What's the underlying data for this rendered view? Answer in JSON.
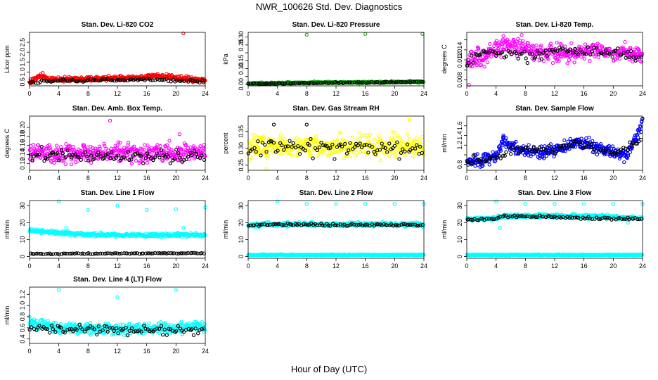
{
  "figure": {
    "title": "NWR_100626  Std. Dev. Diagnostics",
    "xlabel": "Hour of Day (UTC)"
  },
  "chart_data": [
    {
      "type": "scatter",
      "title": "Stan. Dev. Li-820 CO2",
      "ylabel": "Licor ppm",
      "xlim": [
        0,
        24
      ],
      "xticks": [
        0,
        4,
        8,
        12,
        16,
        20,
        24
      ],
      "ylim": [
        0.3,
        3.0
      ],
      "yticks": [
        0.5,
        1.0,
        1.5,
        2.0,
        2.5
      ],
      "ytick_labels": [
        "0.5",
        "1.0",
        "1.5",
        "2.0",
        "2.5"
      ],
      "series": [
        {
          "color": "#ff0000",
          "base": 0.6,
          "spread": 0.08,
          "profile": [
            [
              0,
              0.5
            ],
            [
              1.5,
              0.8
            ],
            [
              3,
              0.62
            ],
            [
              8,
              0.65
            ],
            [
              12,
              0.68
            ],
            [
              15,
              0.7
            ],
            [
              17,
              0.82
            ],
            [
              20,
              0.72
            ],
            [
              24,
              0.55
            ]
          ],
          "outliers": [
            [
              21,
              2.95
            ],
            [
              1.8,
              0.95
            ]
          ]
        },
        {
          "color": "#000000",
          "base": 0.55,
          "spread": 0.05,
          "profile": [
            [
              0,
              0.5
            ],
            [
              4,
              0.56
            ],
            [
              12,
              0.6
            ],
            [
              16,
              0.62
            ],
            [
              20,
              0.58
            ],
            [
              24,
              0.52
            ]
          ],
          "outliers": []
        }
      ]
    },
    {
      "type": "scatter",
      "title": "Stan. Dev. Li-820 Pressure",
      "ylabel": "kPa",
      "xlim": [
        0,
        24
      ],
      "xticks": [
        0,
        4,
        8,
        12,
        16,
        20,
        24
      ],
      "ylim": [
        -0.01,
        0.33
      ],
      "yticks": [
        0.0,
        0.05,
        0.1,
        0.15,
        0.2,
        0.25,
        0.3
      ],
      "ytick_labels": [
        "0.00",
        "",
        "0.10",
        "0.15",
        "",
        "0.25",
        "0.30"
      ],
      "series": [
        {
          "color": "#00b000",
          "base": 0.01,
          "spread": 0.004,
          "profile": [
            [
              0,
              0.004
            ],
            [
              8,
              0.01
            ],
            [
              16,
              0.012
            ],
            [
              24,
              0.016
            ]
          ],
          "outliers": [
            [
              8,
              0.315
            ],
            [
              16,
              0.32
            ],
            [
              23.8,
              0.32
            ]
          ]
        },
        {
          "color": "#000000",
          "base": 0.01,
          "spread": 0.003,
          "profile": [
            [
              0,
              0.004
            ],
            [
              12,
              0.01
            ],
            [
              24,
              0.014
            ]
          ],
          "outliers": []
        }
      ]
    },
    {
      "type": "scatter",
      "title": "Stan. Dev. Li-820 Temp.",
      "ylabel": "degrees C",
      "xlim": [
        0,
        24
      ],
      "xticks": [
        0,
        4,
        8,
        12,
        16,
        20,
        24
      ],
      "ylim": [
        0.0068,
        0.0175
      ],
      "yticks": [
        0.008,
        0.01,
        0.012,
        0.014,
        0.016
      ],
      "ytick_labels": [
        "0.008",
        "",
        "0.012",
        "0.014",
        ""
      ],
      "series": [
        {
          "color": "#ff00ff",
          "base": 0.013,
          "spread": 0.0012,
          "profile": [
            [
              0,
              0.0115
            ],
            [
              2,
              0.0125
            ],
            [
              4,
              0.0145
            ],
            [
              7,
              0.015
            ],
            [
              9,
              0.0138
            ],
            [
              12,
              0.0132
            ],
            [
              16,
              0.0136
            ],
            [
              20,
              0.0136
            ],
            [
              24,
              0.013
            ]
          ],
          "outliers": [
            [
              0.3,
              0.007
            ],
            [
              7.5,
              0.017
            ],
            [
              5,
              0.0168
            ]
          ]
        },
        {
          "color": "#000000",
          "base": 0.0133,
          "spread": 0.0008,
          "profile": [
            [
              0,
              0.0115
            ],
            [
              4,
              0.014
            ],
            [
              8,
              0.0125
            ],
            [
              12,
              0.0138
            ],
            [
              20,
              0.0136
            ],
            [
              24,
              0.0122
            ]
          ],
          "outliers": []
        }
      ]
    },
    {
      "type": "scatter",
      "title": "Stan. Dev. Amb. Box Temp.",
      "ylabel": "degrees C",
      "xlim": [
        0,
        24
      ],
      "xticks": [
        0,
        4,
        8,
        12,
        16,
        20,
        24
      ],
      "ylim": [
        0.105,
        0.225
      ],
      "yticks": [
        0.12,
        0.14,
        0.16,
        0.18,
        0.2
      ],
      "ytick_labels": [
        "0.12",
        "0.14",
        "0.16",
        "0.18",
        "0.20"
      ],
      "series": [
        {
          "color": "#ff00ff",
          "base": 0.143,
          "spread": 0.014,
          "profile": [
            [
              0,
              0.142
            ],
            [
              12,
              0.144
            ],
            [
              24,
              0.143
            ]
          ],
          "outliers": [
            [
              11,
              0.215
            ],
            [
              20.5,
              0.185
            ]
          ]
        },
        {
          "color": "#000000",
          "base": 0.138,
          "spread": 0.01,
          "profile": [
            [
              0,
              0.138
            ],
            [
              24,
              0.136
            ]
          ],
          "outliers": []
        }
      ]
    },
    {
      "type": "scatter",
      "title": "Stan. Dev. Gas Stream RH",
      "ylabel": "percent",
      "xlim": [
        0,
        24
      ],
      "xticks": [
        0,
        4,
        8,
        12,
        16,
        20,
        24
      ],
      "ylim": [
        0.235,
        0.395
      ],
      "yticks": [
        0.25,
        0.3,
        0.35
      ],
      "ytick_labels": [
        "0.25",
        "0.30",
        "0.35"
      ],
      "series": [
        {
          "color": "#ffff00",
          "base": 0.305,
          "spread": 0.022,
          "profile": [
            [
              0,
              0.305
            ],
            [
              12,
              0.305
            ],
            [
              24,
              0.305
            ]
          ],
          "outliers": [
            [
              22,
              0.385
            ],
            [
              2.5,
              0.24
            ]
          ]
        },
        {
          "color": "#000000",
          "base": 0.305,
          "spread": 0.018,
          "profile": [
            [
              0,
              0.305
            ],
            [
              24,
              0.3
            ]
          ],
          "outliers": [
            [
              3.5,
              0.37
            ],
            [
              8,
              0.37
            ]
          ]
        }
      ]
    },
    {
      "type": "scatter",
      "title": "Stan. Dev. Sample Flow",
      "ylabel": "ml/min",
      "xlim": [
        0,
        24
      ],
      "xticks": [
        0,
        4,
        8,
        12,
        16,
        20,
        24
      ],
      "ylim": [
        0.68,
        1.8
      ],
      "yticks": [
        0.8,
        1.0,
        1.2,
        1.4,
        1.6
      ],
      "ytick_labels": [
        "0.8",
        "",
        "1.2",
        "1.4",
        "1.6"
      ],
      "series": [
        {
          "color": "#0000ff",
          "base": 1.05,
          "spread": 0.09,
          "profile": [
            [
              0,
              0.85
            ],
            [
              4,
              0.95
            ],
            [
              5,
              1.3
            ],
            [
              7,
              1.1
            ],
            [
              10,
              1.05
            ],
            [
              13,
              1.15
            ],
            [
              15,
              1.25
            ],
            [
              17,
              1.2
            ],
            [
              20,
              1.05
            ],
            [
              22,
              1.0
            ],
            [
              23.5,
              1.5
            ],
            [
              24,
              1.7
            ]
          ],
          "outliers": [
            [
              5,
              1.4
            ],
            [
              24,
              1.75
            ]
          ]
        },
        {
          "color": "#000000",
          "base": 1.0,
          "spread": 0.06,
          "profile": [
            [
              0,
              0.85
            ],
            [
              4,
              0.95
            ],
            [
              6,
              1.1
            ],
            [
              12,
              1.1
            ],
            [
              15,
              1.25
            ],
            [
              20,
              1.0
            ],
            [
              24,
              1.3
            ]
          ],
          "outliers": []
        }
      ]
    },
    {
      "type": "scatter",
      "title": "Stan. Dev. Line 1 Flow",
      "ylabel": "ml/min",
      "xlim": [
        0,
        24
      ],
      "xticks": [
        0,
        4,
        8,
        12,
        16,
        20,
        24
      ],
      "ylim": [
        -1,
        33
      ],
      "yticks": [
        0,
        10,
        20,
        30
      ],
      "ytick_labels": [
        "0",
        "10",
        "20",
        "30"
      ],
      "series": [
        {
          "color": "#00ffff",
          "base": 13.0,
          "spread": 0.7,
          "profile": [
            [
              0,
              15.5
            ],
            [
              4,
              14.0
            ],
            [
              8,
              13.0
            ],
            [
              16,
              12.5
            ],
            [
              24,
              13.0
            ]
          ],
          "outliers": [
            [
              4,
              32.5
            ],
            [
              8,
              27.5
            ],
            [
              12,
              30
            ],
            [
              16,
              27.5
            ],
            [
              20,
              28
            ],
            [
              24,
              29
            ],
            [
              5,
              17
            ],
            [
              21,
              17
            ]
          ]
        },
        {
          "color": "#000000",
          "base": 1.8,
          "spread": 0.2,
          "profile": [
            [
              0,
              1.6
            ],
            [
              24,
              2.0
            ]
          ],
          "outliers": []
        }
      ]
    },
    {
      "type": "scatter",
      "title": "Stan. Dev. Line 2 Flow",
      "ylabel": "ml/min",
      "xlim": [
        0,
        24
      ],
      "xticks": [
        0,
        4,
        8,
        12,
        16,
        20,
        24
      ],
      "ylim": [
        -1,
        33
      ],
      "yticks": [
        0,
        10,
        20,
        30
      ],
      "ytick_labels": [
        "0",
        "10",
        "20",
        "30"
      ],
      "series": [
        {
          "color": "#00ffff",
          "base": 19.0,
          "spread": 0.9,
          "profile": [
            [
              0,
              18
            ],
            [
              2,
              19
            ],
            [
              24,
              19
            ]
          ],
          "outliers": [
            [
              4,
              32.5
            ],
            [
              8,
              31
            ],
            [
              12,
              31
            ],
            [
              16,
              31
            ],
            [
              20,
              31
            ],
            [
              24,
              31
            ]
          ]
        },
        {
          "color": "#00ffff",
          "base": 1.0,
          "spread": 0.2,
          "profile": [
            [
              0,
              1
            ],
            [
              24,
              1
            ]
          ],
          "outliers": []
        },
        {
          "color": "#000000",
          "base": 19.0,
          "spread": 0.5,
          "profile": [
            [
              0,
              18
            ],
            [
              2,
              19
            ],
            [
              24,
              18.5
            ]
          ],
          "outliers": []
        }
      ]
    },
    {
      "type": "scatter",
      "title": "Stan. Dev. Line 3 Flow",
      "ylabel": "ml/min",
      "xlim": [
        0,
        24
      ],
      "xticks": [
        0,
        4,
        8,
        12,
        16,
        20,
        24
      ],
      "ylim": [
        -1,
        33
      ],
      "yticks": [
        0,
        10,
        20,
        30
      ],
      "ytick_labels": [
        "0",
        "10",
        "20",
        "30"
      ],
      "series": [
        {
          "color": "#00ffff",
          "base": 23.5,
          "spread": 0.8,
          "profile": [
            [
              0,
              22
            ],
            [
              4,
              22.5
            ],
            [
              5,
              24
            ],
            [
              12,
              24
            ],
            [
              20,
              23.5
            ],
            [
              24,
              22.5
            ]
          ],
          "outliers": [
            [
              4,
              32.5
            ],
            [
              8,
              31
            ],
            [
              12,
              31
            ],
            [
              16,
              31
            ],
            [
              20,
              31
            ],
            [
              24,
              31
            ],
            [
              4.5,
              17
            ],
            [
              22,
              20
            ]
          ]
        },
        {
          "color": "#00ffff",
          "base": 1.0,
          "spread": 0.2,
          "profile": [
            [
              0,
              1
            ],
            [
              24,
              1
            ]
          ],
          "outliers": []
        },
        {
          "color": "#000000",
          "base": 23.0,
          "spread": 0.5,
          "profile": [
            [
              0,
              21.5
            ],
            [
              4,
              22.5
            ],
            [
              5,
              24
            ],
            [
              24,
              22
            ]
          ],
          "outliers": []
        }
      ]
    },
    {
      "type": "scatter",
      "title": "Stan. Dev. Line 4 (LT) Flow",
      "ylabel": "ml/min",
      "xlim": [
        0,
        24
      ],
      "xticks": [
        0,
        4,
        8,
        12,
        16,
        20,
        24
      ],
      "ylim": [
        0.32,
        1.33
      ],
      "yticks": [
        0.4,
        0.6,
        0.8,
        1.0,
        1.2
      ],
      "ytick_labels": [
        "0.4",
        "0.6",
        "0.8",
        "1.0",
        "1.2"
      ],
      "series": [
        {
          "color": "#00ffff",
          "base": 0.6,
          "spread": 0.07,
          "profile": [
            [
              0,
              0.7
            ],
            [
              4,
              0.6
            ],
            [
              12,
              0.58
            ],
            [
              24,
              0.62
            ]
          ],
          "outliers": [
            [
              4,
              1.28
            ],
            [
              12,
              1.15
            ],
            [
              20,
              1.28
            ],
            [
              0,
              0.8
            ]
          ]
        },
        {
          "color": "#000000",
          "base": 0.56,
          "spread": 0.06,
          "profile": [
            [
              0,
              0.6
            ],
            [
              24,
              0.55
            ]
          ],
          "outliers": []
        }
      ]
    }
  ]
}
